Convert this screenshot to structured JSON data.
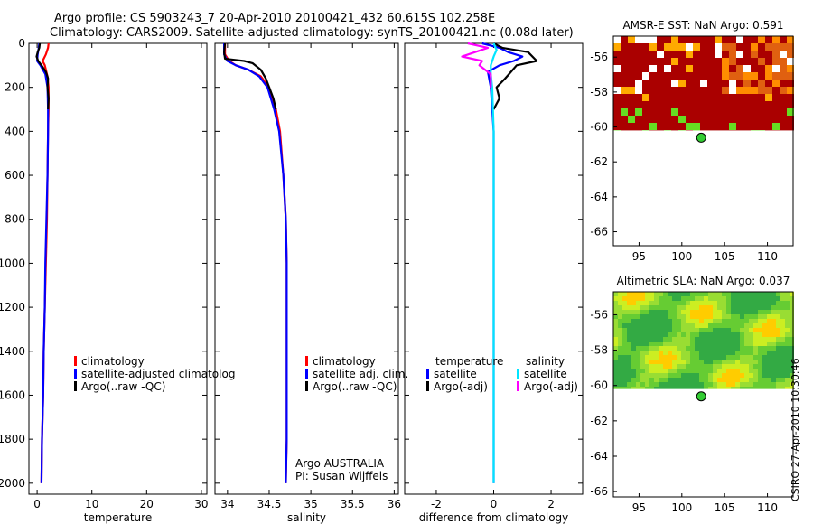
{
  "title": {
    "line1": "Argo profile: CS 5903243_7 20-Apr-2010 20100421_432 60.615S 102.258E",
    "line2": "Climatology: CARS2009. Satellite-adjusted climatology: synTS_20100421.nc (0.08d later)"
  },
  "stamp": "CSIRO 27-Apr-2010 10:30:46",
  "colors": {
    "red": "#ff0000",
    "blue": "#0000ff",
    "black": "#000000",
    "cyan": "#00e5ff",
    "magenta": "#ff00ff",
    "dot": "#33cc33"
  },
  "chart_data": [
    {
      "type": "line",
      "id": "temperature",
      "xlabel": "temperature",
      "ylabel": "",
      "xlim": [
        -1.5,
        31
      ],
      "ylim": [
        2050,
        0
      ],
      "xticks": [
        0,
        10,
        20,
        30
      ],
      "yticks": [
        0,
        200,
        400,
        600,
        800,
        1000,
        1200,
        1400,
        1600,
        1800,
        2000
      ],
      "legend": [
        "climatology",
        "satellite-adjusted climatolog",
        "Argo(..raw -QC)"
      ],
      "series": [
        {
          "name": "climatology",
          "color": "red",
          "points": [
            [
              2.1,
              0
            ],
            [
              2.0,
              20
            ],
            [
              1.6,
              50
            ],
            [
              1.0,
              80
            ],
            [
              1.4,
              100
            ],
            [
              1.9,
              150
            ],
            [
              2.1,
              200
            ],
            [
              2.1,
              300
            ],
            [
              2.0,
              400
            ],
            [
              1.9,
              600
            ],
            [
              1.8,
              800
            ],
            [
              1.6,
              1000
            ],
            [
              1.4,
              1200
            ],
            [
              1.2,
              1400
            ],
            [
              1.1,
              1600
            ],
            [
              0.9,
              1800
            ],
            [
              0.8,
              2000
            ]
          ]
        },
        {
          "name": "satellite-adjusted climatology",
          "color": "blue",
          "points": [
            [
              0.4,
              0
            ],
            [
              0.3,
              20
            ],
            [
              0.1,
              50
            ],
            [
              0.0,
              80
            ],
            [
              0.6,
              100
            ],
            [
              1.5,
              140
            ],
            [
              1.9,
              200
            ],
            [
              2.0,
              300
            ],
            [
              2.0,
              400
            ],
            [
              1.9,
              600
            ],
            [
              1.7,
              800
            ],
            [
              1.5,
              1000
            ],
            [
              1.4,
              1200
            ],
            [
              1.2,
              1400
            ],
            [
              1.1,
              1600
            ],
            [
              0.9,
              1800
            ],
            [
              0.8,
              2000
            ]
          ]
        },
        {
          "name": "Argo(..raw -QC)",
          "color": "black",
          "points": [
            [
              0.5,
              0
            ],
            [
              0.4,
              20
            ],
            [
              0.1,
              40
            ],
            [
              -0.1,
              60
            ],
            [
              0.2,
              80
            ],
            [
              0.8,
              100
            ],
            [
              1.6,
              130
            ],
            [
              2.0,
              160
            ],
            [
              1.9,
              200
            ],
            [
              2.1,
              250
            ],
            [
              2.0,
              300
            ]
          ]
        }
      ]
    },
    {
      "type": "line",
      "id": "salinity",
      "xlabel": "salinity",
      "ylabel": "",
      "xlim": [
        33.85,
        36.05
      ],
      "ylim": [
        2050,
        0
      ],
      "xticks": [
        34,
        34.5,
        35,
        35.5,
        36
      ],
      "xtick_labels": [
        "34",
        "34.5",
        "35",
        "35.5",
        "36"
      ],
      "legend": [
        "climatology",
        "satellite adj. clim.",
        "Argo(..raw -QC)"
      ],
      "annotation": [
        "Argo AUSTRALIA",
        "PI: Susan Wijffels"
      ],
      "series": [
        {
          "name": "climatology",
          "color": "red",
          "points": [
            [
              33.97,
              0
            ],
            [
              33.97,
              50
            ],
            [
              34.02,
              80
            ],
            [
              34.1,
              100
            ],
            [
              34.25,
              120
            ],
            [
              34.4,
              150
            ],
            [
              34.5,
              200
            ],
            [
              34.58,
              300
            ],
            [
              34.63,
              400
            ],
            [
              34.67,
              600
            ],
            [
              34.7,
              800
            ],
            [
              34.71,
              1000
            ],
            [
              34.71,
              1200
            ],
            [
              34.71,
              1400
            ],
            [
              34.71,
              1600
            ],
            [
              34.71,
              1800
            ],
            [
              34.7,
              2000
            ]
          ]
        },
        {
          "name": "satellite adj. clim.",
          "color": "blue",
          "points": [
            [
              33.96,
              0
            ],
            [
              33.96,
              50
            ],
            [
              34.0,
              80
            ],
            [
              34.1,
              100
            ],
            [
              34.25,
              120
            ],
            [
              34.38,
              150
            ],
            [
              34.48,
              200
            ],
            [
              34.56,
              300
            ],
            [
              34.62,
              400
            ],
            [
              34.67,
              600
            ],
            [
              34.7,
              800
            ],
            [
              34.71,
              1000
            ],
            [
              34.71,
              1200
            ],
            [
              34.71,
              1400
            ],
            [
              34.71,
              1600
            ],
            [
              34.71,
              1800
            ],
            [
              34.7,
              2000
            ]
          ]
        },
        {
          "name": "Argo(..raw -QC)",
          "color": "black",
          "points": [
            [
              33.97,
              0
            ],
            [
              33.96,
              40
            ],
            [
              33.97,
              70
            ],
            [
              34.2,
              80
            ],
            [
              34.3,
              90
            ],
            [
              34.4,
              120
            ],
            [
              34.46,
              160
            ],
            [
              34.5,
              200
            ],
            [
              34.55,
              250
            ],
            [
              34.58,
              300
            ]
          ]
        }
      ]
    },
    {
      "type": "line",
      "id": "difference",
      "xlabel": "difference from climatology",
      "ylabel": "",
      "xlim": [
        -3.1,
        3.1
      ],
      "ylim": [
        2050,
        0
      ],
      "xticks": [
        -2,
        0,
        2
      ],
      "legend_temperature": {
        "heading": "temperature",
        "items": [
          "satellite",
          "Argo(-adj)"
        ]
      },
      "legend_salinity": {
        "heading": "salinity",
        "items": [
          "satellite",
          "Argo(-adj)"
        ]
      },
      "series": [
        {
          "name": "temperature satellite",
          "color": "blue",
          "points": [
            [
              -0.4,
              0
            ],
            [
              0.2,
              20
            ],
            [
              0.5,
              40
            ],
            [
              1.0,
              60
            ],
            [
              0.7,
              80
            ],
            [
              0.2,
              100
            ],
            [
              -0.2,
              130
            ],
            [
              -0.1,
              200
            ],
            [
              0.0,
              400
            ],
            [
              0.0,
              2000
            ]
          ]
        },
        {
          "name": "temperature Argo(-adj)",
          "color": "black",
          "points": [
            [
              0.0,
              0
            ],
            [
              0.3,
              20
            ],
            [
              1.2,
              40
            ],
            [
              1.5,
              80
            ],
            [
              0.8,
              100
            ],
            [
              0.6,
              130
            ],
            [
              0.4,
              160
            ],
            [
              0.1,
              200
            ],
            [
              0.2,
              250
            ],
            [
              0.0,
              300
            ]
          ]
        },
        {
          "name": "salinity satellite",
          "color": "cyan",
          "points": [
            [
              0.0,
              0
            ],
            [
              0.1,
              30
            ],
            [
              0.0,
              60
            ],
            [
              -0.1,
              100
            ],
            [
              -0.1,
              140
            ],
            [
              -0.05,
              200
            ],
            [
              0.0,
              400
            ],
            [
              0.0,
              2000
            ]
          ]
        },
        {
          "name": "salinity Argo(-adj)",
          "color": "magenta",
          "points": [
            [
              -0.9,
              0
            ],
            [
              -0.2,
              20
            ],
            [
              -1.1,
              60
            ],
            [
              -0.4,
              80
            ],
            [
              -0.5,
              100
            ],
            [
              -0.1,
              140
            ],
            [
              -0.1,
              200
            ]
          ]
        }
      ]
    },
    {
      "type": "heatmap",
      "id": "amsre-sst",
      "title": "AMSR-E SST: NaN Argo: 0.591",
      "xlim": [
        92,
        113
      ],
      "ylim": [
        -66.8,
        -54.8
      ],
      "xticks": [
        95,
        100,
        105,
        110
      ],
      "yticks": [
        -56,
        -58,
        -60,
        -62,
        -64,
        -66
      ],
      "marker": {
        "lon": 102.258,
        "lat": -60.615
      },
      "data_lat_min": -60.2
    },
    {
      "type": "heatmap",
      "id": "altimetric-sla",
      "title": "Altimetric SLA: NaN Argo: 0.037",
      "xlim": [
        92,
        113
      ],
      "ylim": [
        -66.3,
        -54.7
      ],
      "xticks": [
        95,
        100,
        105,
        110
      ],
      "yticks": [
        -56,
        -58,
        -60,
        -62,
        -64,
        -66
      ],
      "marker": {
        "lon": 102.258,
        "lat": -60.615
      },
      "data_lat_min": -60.2
    }
  ]
}
